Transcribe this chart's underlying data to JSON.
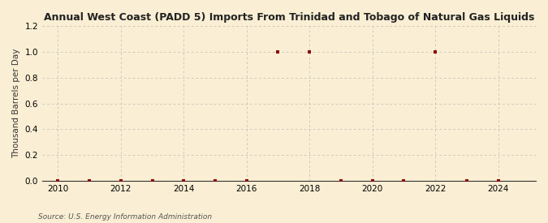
{
  "title": "Annual West Coast (PADD 5) Imports From Trinidad and Tobago of Natural Gas Liquids",
  "ylabel": "Thousand Barrels per Day",
  "source": "Source: U.S. Energy Information Administration",
  "background_color": "#faefd4",
  "years": [
    2010,
    2011,
    2012,
    2013,
    2014,
    2015,
    2016,
    2017,
    2018,
    2019,
    2020,
    2021,
    2022,
    2023,
    2024
  ],
  "values": [
    0,
    0,
    0,
    0,
    0,
    0,
    0,
    1.0,
    1.0,
    0,
    0,
    0,
    1.0,
    0,
    0
  ],
  "zero_marker_years": [
    2012,
    2013,
    2016,
    2020,
    2021,
    2023,
    2024
  ],
  "zero_marker_values": [
    0,
    0,
    0,
    0,
    0,
    0,
    0
  ],
  "marker_color": "#8b0000",
  "marker_size": 3,
  "xlim": [
    2009.5,
    2025.2
  ],
  "ylim": [
    0,
    1.2
  ],
  "yticks": [
    0.0,
    0.2,
    0.4,
    0.6,
    0.8,
    1.0,
    1.2
  ],
  "xticks": [
    2010,
    2012,
    2014,
    2016,
    2018,
    2020,
    2022,
    2024
  ],
  "grid_color": "#bbbbbb",
  "title_fontsize": 9,
  "label_fontsize": 7.5,
  "tick_fontsize": 7.5,
  "source_fontsize": 6.5
}
